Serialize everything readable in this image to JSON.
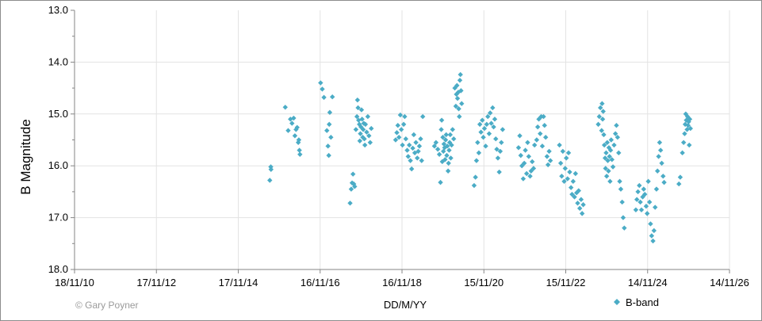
{
  "chart_data": {
    "type": "scatter",
    "ylabel": "B Magnitude",
    "xlabel": "DD/M/YY",
    "credit": "© Gary Poyner",
    "y_inverted": true,
    "ylim": [
      13.0,
      18.0
    ],
    "y_ticks": [
      "13.0",
      "14.0",
      "15.0",
      "16.0",
      "17.0",
      "18.0"
    ],
    "xlim": [
      "2010-11-18",
      "2026-11-14"
    ],
    "x_ticks": [
      {
        "date": "2010-11-18",
        "label": "18/11/10"
      },
      {
        "date": "2012-11-17",
        "label": "17/11/12"
      },
      {
        "date": "2014-11-17",
        "label": "17/11/14"
      },
      {
        "date": "2016-11-16",
        "label": "16/11/16"
      },
      {
        "date": "2018-11-16",
        "label": "16/11/18"
      },
      {
        "date": "2020-11-15",
        "label": "15/11/20"
      },
      {
        "date": "2022-11-15",
        "label": "15/11/22"
      },
      {
        "date": "2024-11-14",
        "label": "14/11/24"
      },
      {
        "date": "2026-11-14",
        "label": "14/11/26"
      }
    ],
    "grid": true,
    "legend_position": "bottom-right",
    "series": [
      {
        "name": "B-band",
        "color": "#4bacc6",
        "marker": "diamond",
        "points": [
          [
            "2015-09-03",
            16.02
          ],
          [
            "2015-09-05",
            16.07
          ],
          [
            "2015-08-25",
            16.28
          ],
          [
            "2016-01-10",
            14.87
          ],
          [
            "2016-02-05",
            15.32
          ],
          [
            "2016-02-25",
            15.1
          ],
          [
            "2016-03-10",
            15.18
          ],
          [
            "2016-03-25",
            15.08
          ],
          [
            "2016-04-05",
            15.42
          ],
          [
            "2016-04-15",
            15.3
          ],
          [
            "2016-04-25",
            15.26
          ],
          [
            "2016-05-05",
            15.55
          ],
          [
            "2016-05-15",
            15.7
          ],
          [
            "2016-05-20",
            15.78
          ],
          [
            "2016-05-10",
            15.5
          ],
          [
            "2016-11-20",
            14.4
          ],
          [
            "2016-12-05",
            14.52
          ],
          [
            "2016-12-20",
            14.68
          ],
          [
            "2017-01-15",
            15.32
          ],
          [
            "2017-01-25",
            15.62
          ],
          [
            "2017-02-05",
            15.2
          ],
          [
            "2017-02-10",
            14.97
          ],
          [
            "2017-02-20",
            15.45
          ],
          [
            "2017-03-05",
            14.67
          ],
          [
            "2017-02-01",
            15.8
          ],
          [
            "2017-08-10",
            16.72
          ],
          [
            "2017-08-20",
            16.45
          ],
          [
            "2017-08-28",
            16.33
          ],
          [
            "2017-09-05",
            16.16
          ],
          [
            "2017-09-12",
            16.35
          ],
          [
            "2017-09-20",
            16.4
          ],
          [
            "2017-10-01",
            15.3
          ],
          [
            "2017-10-10",
            15.05
          ],
          [
            "2017-10-15",
            14.73
          ],
          [
            "2017-10-20",
            14.88
          ],
          [
            "2017-10-25",
            15.12
          ],
          [
            "2017-11-01",
            15.2
          ],
          [
            "2017-11-05",
            15.52
          ],
          [
            "2017-11-10",
            15.38
          ],
          [
            "2017-11-15",
            15.25
          ],
          [
            "2017-11-20",
            14.92
          ],
          [
            "2017-11-25",
            15.1
          ],
          [
            "2017-12-01",
            15.45
          ],
          [
            "2017-12-05",
            15.3
          ],
          [
            "2017-12-10",
            15.18
          ],
          [
            "2017-12-15",
            15.48
          ],
          [
            "2017-12-20",
            15.6
          ],
          [
            "2017-12-25",
            15.2
          ],
          [
            "2018-01-05",
            15.35
          ],
          [
            "2018-01-15",
            15.05
          ],
          [
            "2018-01-25",
            15.42
          ],
          [
            "2018-02-05",
            15.55
          ],
          [
            "2018-02-15",
            15.28
          ],
          [
            "2018-09-20",
            15.5
          ],
          [
            "2018-10-01",
            15.36
          ],
          [
            "2018-10-10",
            15.22
          ],
          [
            "2018-10-20",
            15.45
          ],
          [
            "2018-11-01",
            15.02
          ],
          [
            "2018-11-10",
            15.3
          ],
          [
            "2018-11-20",
            15.6
          ],
          [
            "2018-12-01",
            15.2
          ],
          [
            "2018-12-10",
            15.05
          ],
          [
            "2018-12-20",
            15.48
          ],
          [
            "2019-01-01",
            15.7
          ],
          [
            "2019-01-10",
            15.82
          ],
          [
            "2019-01-20",
            15.6
          ],
          [
            "2019-01-30",
            15.9
          ],
          [
            "2019-02-10",
            16.06
          ],
          [
            "2019-02-20",
            15.66
          ],
          [
            "2019-03-01",
            15.4
          ],
          [
            "2019-03-10",
            15.75
          ],
          [
            "2019-03-20",
            15.55
          ],
          [
            "2019-04-01",
            15.85
          ],
          [
            "2019-04-10",
            15.72
          ],
          [
            "2019-04-20",
            15.62
          ],
          [
            "2019-05-01",
            15.48
          ],
          [
            "2019-05-10",
            15.9
          ],
          [
            "2019-05-20",
            15.05
          ],
          [
            "2019-09-01",
            15.62
          ],
          [
            "2019-09-15",
            15.55
          ],
          [
            "2019-10-01",
            15.68
          ],
          [
            "2019-10-15",
            15.78
          ],
          [
            "2019-10-25",
            16.32
          ],
          [
            "2019-11-01",
            15.3
          ],
          [
            "2019-11-05",
            15.12
          ],
          [
            "2019-11-10",
            15.92
          ],
          [
            "2019-11-15",
            15.45
          ],
          [
            "2019-11-20",
            15.72
          ],
          [
            "2019-11-25",
            15.58
          ],
          [
            "2019-12-01",
            15.65
          ],
          [
            "2019-12-05",
            15.88
          ],
          [
            "2019-12-10",
            15.5
          ],
          [
            "2019-12-15",
            15.4
          ],
          [
            "2019-12-20",
            15.8
          ],
          [
            "2019-12-25",
            15.62
          ],
          [
            "2020-01-01",
            16.1
          ],
          [
            "2020-01-05",
            15.95
          ],
          [
            "2020-01-10",
            15.7
          ],
          [
            "2020-01-15",
            15.55
          ],
          [
            "2020-01-20",
            15.4
          ],
          [
            "2020-01-25",
            15.85
          ],
          [
            "2020-02-01",
            15.6
          ],
          [
            "2020-02-10",
            15.3
          ],
          [
            "2020-02-20",
            15.48
          ],
          [
            "2020-03-01",
            14.5
          ],
          [
            "2020-03-10",
            14.85
          ],
          [
            "2020-03-15",
            14.62
          ],
          [
            "2020-03-20",
            14.45
          ],
          [
            "2020-03-25",
            14.7
          ],
          [
            "2020-04-01",
            14.58
          ],
          [
            "2020-04-05",
            14.9
          ],
          [
            "2020-04-10",
            15.05
          ],
          [
            "2020-04-15",
            14.35
          ],
          [
            "2020-04-20",
            14.24
          ],
          [
            "2020-04-25",
            14.55
          ],
          [
            "2020-05-01",
            14.8
          ],
          [
            "2020-08-20",
            16.38
          ],
          [
            "2020-09-01",
            16.22
          ],
          [
            "2020-09-10",
            15.9
          ],
          [
            "2020-09-20",
            15.55
          ],
          [
            "2020-10-01",
            15.75
          ],
          [
            "2020-10-10",
            15.2
          ],
          [
            "2020-10-20",
            15.35
          ],
          [
            "2020-11-01",
            15.12
          ],
          [
            "2020-11-10",
            15.45
          ],
          [
            "2020-11-20",
            15.28
          ],
          [
            "2020-12-01",
            15.62
          ],
          [
            "2020-12-10",
            15.2
          ],
          [
            "2020-12-20",
            15.05
          ],
          [
            "2021-01-01",
            15.38
          ],
          [
            "2021-01-10",
            14.98
          ],
          [
            "2021-01-20",
            15.18
          ],
          [
            "2021-02-01",
            14.88
          ],
          [
            "2021-02-10",
            15.25
          ],
          [
            "2021-02-20",
            15.1
          ],
          [
            "2021-03-01",
            15.48
          ],
          [
            "2021-03-10",
            15.68
          ],
          [
            "2021-03-20",
            15.85
          ],
          [
            "2021-04-01",
            16.12
          ],
          [
            "2021-04-10",
            15.72
          ],
          [
            "2021-04-20",
            15.55
          ],
          [
            "2021-05-01",
            15.3
          ],
          [
            "2021-09-20",
            15.65
          ],
          [
            "2021-10-01",
            15.42
          ],
          [
            "2021-10-10",
            15.8
          ],
          [
            "2021-10-20",
            16.0
          ],
          [
            "2021-11-01",
            16.25
          ],
          [
            "2021-11-10",
            15.95
          ],
          [
            "2021-11-20",
            15.7
          ],
          [
            "2021-12-01",
            16.15
          ],
          [
            "2021-12-10",
            15.55
          ],
          [
            "2021-12-20",
            15.82
          ],
          [
            "2022-01-01",
            16.2
          ],
          [
            "2022-01-10",
            16.1
          ],
          [
            "2022-01-20",
            15.92
          ],
          [
            "2022-02-01",
            16.05
          ],
          [
            "2022-02-10",
            15.6
          ],
          [
            "2022-03-01",
            15.5
          ],
          [
            "2022-03-10",
            15.25
          ],
          [
            "2022-03-20",
            15.1
          ],
          [
            "2022-04-01",
            15.38
          ],
          [
            "2022-04-10",
            15.05
          ],
          [
            "2022-04-20",
            15.62
          ],
          [
            "2022-05-01",
            15.05
          ],
          [
            "2022-05-10",
            15.22
          ],
          [
            "2022-05-20",
            15.45
          ],
          [
            "2022-06-01",
            15.82
          ],
          [
            "2022-06-10",
            15.98
          ],
          [
            "2022-06-20",
            15.72
          ],
          [
            "2022-07-01",
            15.9
          ],
          [
            "2022-09-20",
            15.6
          ],
          [
            "2022-10-01",
            15.95
          ],
          [
            "2022-10-10",
            16.2
          ],
          [
            "2022-10-20",
            15.72
          ],
          [
            "2022-11-01",
            16.3
          ],
          [
            "2022-11-10",
            16.05
          ],
          [
            "2022-11-20",
            15.85
          ],
          [
            "2022-12-01",
            16.25
          ],
          [
            "2022-12-10",
            15.75
          ],
          [
            "2022-12-20",
            16.12
          ],
          [
            "2023-01-01",
            16.42
          ],
          [
            "2023-01-10",
            16.55
          ],
          [
            "2023-01-20",
            16.3
          ],
          [
            "2023-02-01",
            16.6
          ],
          [
            "2023-02-10",
            16.15
          ],
          [
            "2023-02-20",
            16.52
          ],
          [
            "2023-03-01",
            16.72
          ],
          [
            "2023-03-10",
            16.48
          ],
          [
            "2023-03-20",
            16.82
          ],
          [
            "2023-04-01",
            16.65
          ],
          [
            "2023-04-10",
            16.92
          ],
          [
            "2023-04-20",
            16.75
          ],
          [
            "2023-09-01",
            15.2
          ],
          [
            "2023-09-10",
            15.05
          ],
          [
            "2023-09-20",
            14.88
          ],
          [
            "2023-10-01",
            15.32
          ],
          [
            "2023-10-05",
            14.8
          ],
          [
            "2023-10-10",
            15.1
          ],
          [
            "2023-10-15",
            14.95
          ],
          [
            "2023-10-20",
            15.4
          ],
          [
            "2023-10-25",
            15.6
          ],
          [
            "2023-11-01",
            15.85
          ],
          [
            "2023-11-05",
            16.05
          ],
          [
            "2023-11-10",
            15.75
          ],
          [
            "2023-11-15",
            16.2
          ],
          [
            "2023-11-20",
            15.55
          ],
          [
            "2023-11-25",
            15.9
          ],
          [
            "2023-12-01",
            16.1
          ],
          [
            "2023-12-05",
            15.65
          ],
          [
            "2023-12-10",
            15.82
          ],
          [
            "2023-12-15",
            16.3
          ],
          [
            "2023-12-20",
            15.7
          ],
          [
            "2023-12-25",
            15.5
          ],
          [
            "2024-01-01",
            15.88
          ],
          [
            "2024-01-10",
            16.02
          ],
          [
            "2024-01-20",
            15.6
          ],
          [
            "2024-02-01",
            15.38
          ],
          [
            "2024-02-10",
            15.22
          ],
          [
            "2024-02-20",
            15.45
          ],
          [
            "2024-03-01",
            15.75
          ],
          [
            "2024-03-10",
            16.3
          ],
          [
            "2024-03-20",
            16.45
          ],
          [
            "2024-04-01",
            16.7
          ],
          [
            "2024-04-10",
            17.0
          ],
          [
            "2024-04-20",
            17.2
          ],
          [
            "2024-08-01",
            16.85
          ],
          [
            "2024-08-10",
            16.65
          ],
          [
            "2024-08-20",
            16.5
          ],
          [
            "2024-09-01",
            16.38
          ],
          [
            "2024-09-10",
            16.7
          ],
          [
            "2024-09-20",
            16.85
          ],
          [
            "2024-10-01",
            16.6
          ],
          [
            "2024-10-10",
            16.45
          ],
          [
            "2024-10-20",
            16.55
          ],
          [
            "2024-11-01",
            16.78
          ],
          [
            "2024-11-10",
            16.92
          ],
          [
            "2024-11-20",
            16.3
          ],
          [
            "2024-12-01",
            16.7
          ],
          [
            "2024-12-10",
            17.12
          ],
          [
            "2024-12-20",
            17.35
          ],
          [
            "2025-01-01",
            17.45
          ],
          [
            "2025-01-10",
            17.25
          ],
          [
            "2025-01-20",
            16.8
          ],
          [
            "2025-02-01",
            16.45
          ],
          [
            "2025-02-10",
            16.1
          ],
          [
            "2025-02-20",
            15.82
          ],
          [
            "2025-03-01",
            15.55
          ],
          [
            "2025-03-10",
            15.7
          ],
          [
            "2025-03-20",
            15.95
          ],
          [
            "2025-04-01",
            16.2
          ],
          [
            "2025-04-10",
            16.32
          ],
          [
            "2025-08-20",
            16.35
          ],
          [
            "2025-09-01",
            16.22
          ],
          [
            "2025-09-20",
            15.75
          ],
          [
            "2025-10-01",
            15.55
          ],
          [
            "2025-10-10",
            15.38
          ],
          [
            "2025-10-15",
            15.2
          ],
          [
            "2025-10-20",
            15.0
          ],
          [
            "2025-10-25",
            15.12
          ],
          [
            "2025-11-01",
            15.3
          ],
          [
            "2025-11-05",
            15.05
          ],
          [
            "2025-11-10",
            15.22
          ],
          [
            "2025-11-15",
            15.15
          ],
          [
            "2025-11-20",
            15.6
          ],
          [
            "2025-11-25",
            15.1
          ],
          [
            "2025-12-01",
            15.28
          ]
        ]
      }
    ]
  }
}
